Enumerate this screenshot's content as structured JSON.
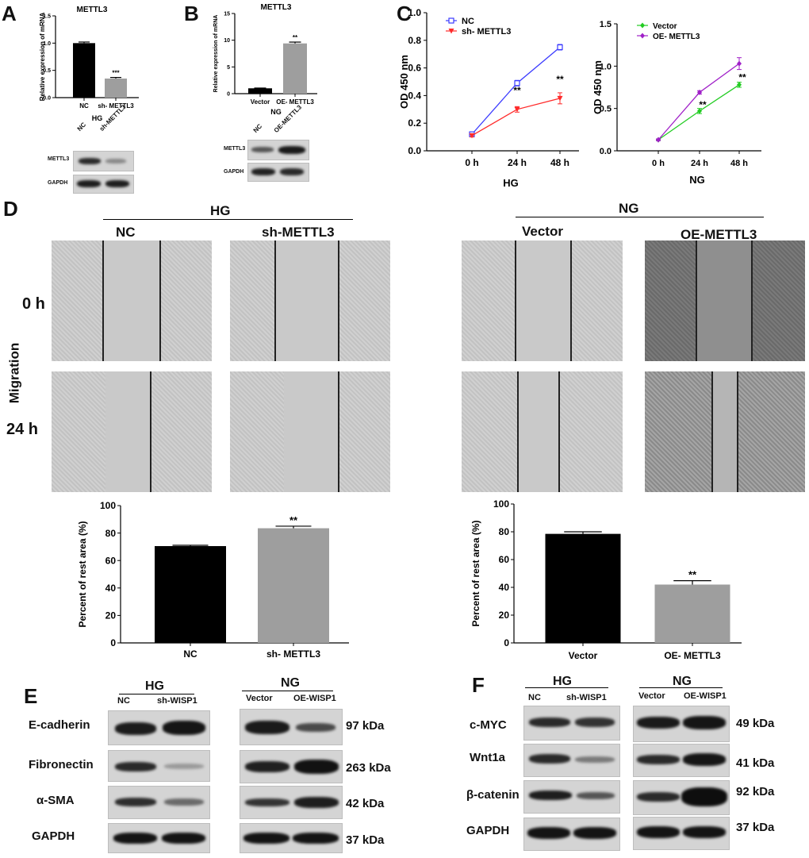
{
  "panel_letters": {
    "a": "A",
    "b": "B",
    "c": "C",
    "d": "D",
    "e": "E",
    "f": "F"
  },
  "colors": {
    "black": "#000000",
    "gray": "#9e9e9e",
    "nc": "#3b3bff",
    "sh": "#ff2a2a",
    "vector": "#22cc22",
    "oe": "#a020c8"
  },
  "chart_data": [
    {
      "id": "A",
      "type": "bar",
      "title": "METTL3",
      "ylabel": "Relative expression of mRNA",
      "xlabel": "HG",
      "categories": [
        "NC",
        "sh- METTL3"
      ],
      "values": [
        1.0,
        0.35
      ],
      "errors": [
        0.02,
        0.02
      ],
      "ylim": [
        0,
        1.5
      ],
      "yticks": [
        "0.0",
        "0.5",
        "1.0",
        "1.5"
      ],
      "ytick_values": [
        0,
        0.5,
        1.0,
        1.5
      ],
      "sig": [
        "",
        "***"
      ]
    },
    {
      "id": "B",
      "type": "bar",
      "title": "METTL3",
      "ylabel": "Relative expression of mRNA",
      "xlabel": "NG",
      "categories": [
        "Vector",
        "OE- METTL3"
      ],
      "values": [
        1.0,
        9.4
      ],
      "errors": [
        0.05,
        0.25
      ],
      "ylim": [
        0,
        15
      ],
      "yticks": [
        "0",
        "5",
        "10",
        "15"
      ],
      "ytick_values": [
        0,
        5,
        10,
        15
      ],
      "sig": [
        "",
        "**"
      ]
    },
    {
      "id": "C1",
      "type": "line",
      "ylabel": "OD 450 nm",
      "xlabel": "HG",
      "x": [
        "0 h",
        "24 h",
        "48 h"
      ],
      "ylim": [
        0,
        1.0
      ],
      "yticks": [
        "0.0",
        "0.2",
        "0.4",
        "0.6",
        "0.8",
        "1.0"
      ],
      "ytick_values": [
        0,
        0.2,
        0.4,
        0.6,
        0.8,
        1.0
      ],
      "series": [
        {
          "name": "NC",
          "values": [
            0.12,
            0.49,
            0.75
          ],
          "errors": [
            0.01,
            0.02,
            0.02
          ],
          "color": "#3b3bff"
        },
        {
          "name": "sh- METTL3",
          "values": [
            0.11,
            0.3,
            0.38
          ],
          "errors": [
            0.01,
            0.02,
            0.04
          ],
          "color": "#ff2a2a"
        }
      ],
      "sig": [
        "",
        "**",
        "**"
      ]
    },
    {
      "id": "C2",
      "type": "line",
      "ylabel": "OD 450 nm",
      "xlabel": "NG",
      "x": [
        "0 h",
        "24 h",
        "48 h"
      ],
      "ylim": [
        0,
        1.5
      ],
      "yticks": [
        "0.0",
        "0.5",
        "1.0",
        "1.5"
      ],
      "ytick_values": [
        0,
        0.5,
        1.0,
        1.5
      ],
      "series": [
        {
          "name": "Vector",
          "values": [
            0.13,
            0.47,
            0.78
          ],
          "errors": [
            0.01,
            0.03,
            0.03
          ],
          "color": "#22cc22"
        },
        {
          "name": "OE- METTL3",
          "values": [
            0.13,
            0.69,
            1.03
          ],
          "errors": [
            0.01,
            0.02,
            0.07
          ],
          "color": "#a020c8"
        }
      ],
      "sig": [
        "",
        "**",
        "**"
      ]
    },
    {
      "id": "D1",
      "type": "bar",
      "ylabel": "Percent of  rest area (%)",
      "categories": [
        "NC",
        "sh- METTL3"
      ],
      "values": [
        70.5,
        83.5
      ],
      "errors": [
        0.6,
        1.5
      ],
      "ylim": [
        0,
        100
      ],
      "yticks": [
        "0",
        "20",
        "40",
        "60",
        "80",
        "100"
      ],
      "ytick_values": [
        0,
        20,
        40,
        60,
        80,
        100
      ],
      "sig": [
        "",
        "**"
      ]
    },
    {
      "id": "D2",
      "type": "bar",
      "ylabel": "Percent of  rest area (%)",
      "categories": [
        "Vector",
        "OE- METTL3"
      ],
      "values": [
        78.5,
        42.0
      ],
      "errors": [
        1.5,
        2.8
      ],
      "ylim": [
        0,
        100
      ],
      "yticks": [
        "0",
        "20",
        "40",
        "60",
        "80",
        "100"
      ],
      "ytick_values": [
        0,
        20,
        40,
        60,
        80,
        100
      ],
      "sig": [
        "",
        "**"
      ]
    }
  ],
  "blots": {
    "a_lanes": [
      "NC",
      "sh-METTL3"
    ],
    "a_rows": [
      "METTL3",
      "GAPDH"
    ],
    "b_lanes": [
      "NC",
      "OE-METTL3"
    ],
    "b_rows": [
      "METTL3",
      "GAPDH"
    ]
  },
  "migration": {
    "hg": "HG",
    "ng": "NG",
    "nc": "NC",
    "sh": "sh-METTL3",
    "vector": "Vector",
    "oe": "OE-METTL3",
    "t0": "0 h",
    "t24": "24 h",
    "side": "Migration"
  },
  "panel_e": {
    "hg": "HG",
    "ng": "NG",
    "hg_lanes": [
      "NC",
      "sh-WISP1"
    ],
    "ng_lanes": [
      "Vector",
      "OE-WISP1"
    ],
    "rows": [
      "E-cadherin",
      "Fibronectin",
      "α-SMA",
      "GAPDH"
    ],
    "kda": [
      "97 kDa",
      "263 kDa",
      "42 kDa",
      "37 kDa"
    ]
  },
  "panel_f": {
    "hg": "HG",
    "ng": "NG",
    "hg_lanes": [
      "NC",
      "sh-WISP1"
    ],
    "ng_lanes": [
      "Vector",
      "OE-WISP1"
    ],
    "rows": [
      "c-MYC",
      "Wnt1a",
      "β-catenin",
      "GAPDH"
    ],
    "kda": [
      "49 kDa",
      "41 kDa",
      "92 kDa",
      "37 kDa"
    ]
  }
}
